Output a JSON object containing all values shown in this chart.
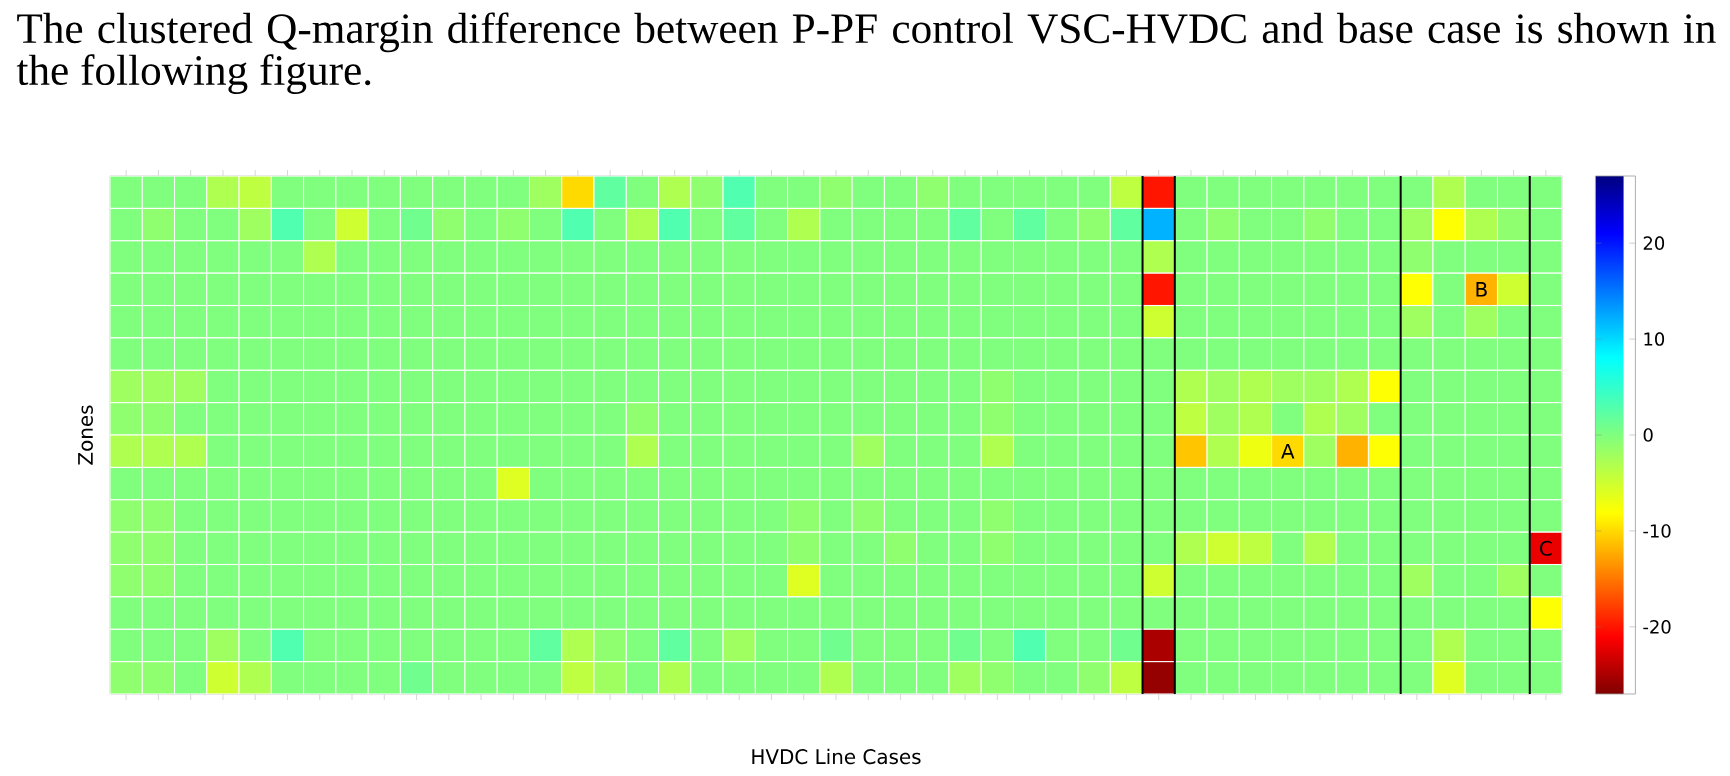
{
  "chart_data": {
    "type": "heatmap",
    "title": "The clustered Q-margin difference between P-PF control VSC-HVDC and base case is shown in the following figure.",
    "xlabel": "HVDC Line Cases",
    "ylabel": "Zones",
    "categories": [
      null,
      null,
      null,
      null,
      null,
      null,
      null,
      null,
      null,
      null,
      null,
      null,
      null,
      null,
      null,
      null,
      null,
      null,
      null,
      null,
      null,
      null,
      null,
      null,
      null,
      null,
      null,
      null,
      null,
      null,
      null,
      null,
      null,
      null,
      null,
      null,
      null,
      null,
      null,
      null,
      null,
      null,
      null,
      null,
      null
    ],
    "y_categories": [
      null,
      null,
      null,
      null,
      null,
      null,
      null,
      null,
      null,
      null,
      null,
      null,
      null,
      null,
      null,
      null
    ],
    "cells": [
      [
        0,
        0,
        0,
        -3,
        -4,
        0,
        0,
        0,
        0,
        0,
        0,
        0,
        0,
        -2,
        -10,
        2,
        0,
        -3,
        -1,
        3,
        0,
        0,
        -1,
        0,
        0,
        -1,
        0,
        0,
        0,
        0,
        0,
        -4,
        -20,
        0,
        0,
        0,
        0,
        0,
        0,
        0,
        0,
        -3,
        0,
        0,
        0
      ],
      [
        0,
        -1,
        0,
        0,
        -2,
        3,
        0,
        -5,
        0,
        1,
        -1,
        0,
        -1,
        0,
        3,
        0,
        -3,
        3,
        0,
        2,
        0,
        -3,
        0,
        0,
        0,
        0,
        2,
        0,
        2,
        0,
        -1,
        2,
        12,
        0,
        -1,
        0,
        0,
        -1,
        0,
        0,
        -2,
        -8,
        -3,
        -1,
        0
      ],
      [
        0,
        0,
        0,
        0,
        0,
        0,
        -3,
        0,
        0,
        0,
        0,
        0,
        0,
        0,
        0,
        0,
        0,
        0,
        0,
        0,
        0,
        0,
        0,
        0,
        0,
        0,
        0,
        0,
        0,
        0,
        0,
        0,
        -3,
        0,
        0,
        0,
        0,
        0,
        0,
        0,
        -1,
        0,
        0,
        0,
        0
      ],
      [
        0,
        0,
        0,
        0,
        0,
        0,
        0,
        0,
        0,
        0,
        0,
        0,
        0,
        0,
        0,
        0,
        0,
        0,
        0,
        0,
        0,
        0,
        0,
        0,
        0,
        0,
        0,
        0,
        0,
        0,
        0,
        0,
        -20,
        0,
        0,
        0,
        0,
        0,
        0,
        0,
        -8,
        0,
        -12,
        -5,
        0
      ],
      [
        0,
        0,
        0,
        0,
        0,
        0,
        0,
        0,
        0,
        0,
        0,
        0,
        0,
        0,
        0,
        0,
        0,
        0,
        0,
        0,
        0,
        0,
        0,
        0,
        0,
        0,
        0,
        0,
        0,
        0,
        0,
        0,
        -5,
        0,
        0,
        0,
        0,
        0,
        0,
        0,
        -2,
        0,
        -2,
        0,
        0
      ],
      [
        0,
        0,
        0,
        0,
        0,
        0,
        0,
        0,
        0,
        0,
        0,
        0,
        0,
        0,
        0,
        0,
        0,
        0,
        0,
        0,
        0,
        0,
        0,
        0,
        0,
        0,
        0,
        0,
        0,
        0,
        0,
        0,
        0,
        0,
        0,
        0,
        0,
        0,
        0,
        0,
        0,
        0,
        0,
        0,
        0
      ],
      [
        -2,
        -2,
        -2,
        0,
        0,
        0,
        0,
        0,
        0,
        0,
        0,
        0,
        0,
        0,
        0,
        0,
        0,
        0,
        0,
        0,
        0,
        0,
        0,
        0,
        0,
        0,
        0,
        -1,
        0,
        0,
        0,
        0,
        0,
        -3,
        -2,
        -3,
        -2,
        -2,
        -3,
        -8,
        0,
        0,
        0,
        0,
        0
      ],
      [
        -1,
        -1,
        0,
        0,
        0,
        0,
        0,
        0,
        0,
        0,
        0,
        0,
        0,
        0,
        0,
        0,
        -1,
        0,
        0,
        0,
        0,
        0,
        0,
        0,
        0,
        0,
        0,
        -1,
        0,
        0,
        0,
        0,
        0,
        -4,
        -2,
        -3,
        0,
        -3,
        -2,
        0,
        0,
        0,
        0,
        0,
        0
      ],
      [
        -3,
        -3,
        -3,
        0,
        0,
        0,
        0,
        0,
        0,
        0,
        0,
        0,
        0,
        0,
        0,
        0,
        -3,
        0,
        0,
        0,
        0,
        0,
        0,
        -2,
        0,
        0,
        0,
        -3,
        0,
        0,
        0,
        0,
        0,
        -11,
        -3,
        -7,
        -10,
        -2,
        -12,
        -8,
        0,
        0,
        0,
        0,
        0
      ],
      [
        0,
        0,
        0,
        0,
        0,
        0,
        0,
        0,
        0,
        0,
        0,
        0,
        -6,
        0,
        0,
        0,
        0,
        0,
        0,
        0,
        0,
        0,
        0,
        0,
        0,
        0,
        0,
        0,
        0,
        0,
        0,
        0,
        0,
        0,
        0,
        0,
        0,
        0,
        0,
        0,
        0,
        0,
        0,
        0,
        0
      ],
      [
        -1,
        -1,
        0,
        0,
        0,
        0,
        0,
        0,
        0,
        0,
        0,
        0,
        0,
        0,
        0,
        0,
        0,
        0,
        0,
        0,
        0,
        -1,
        0,
        -1,
        0,
        0,
        0,
        -1,
        0,
        0,
        0,
        0,
        0,
        0,
        0,
        0,
        0,
        0,
        0,
        0,
        0,
        0,
        0,
        0,
        0
      ],
      [
        -1,
        -1,
        0,
        0,
        0,
        0,
        0,
        0,
        0,
        0,
        0,
        0,
        0,
        0,
        0,
        0,
        0,
        0,
        0,
        0,
        0,
        -1,
        0,
        0,
        -1,
        0,
        0,
        -1,
        0,
        0,
        0,
        0,
        0,
        -3,
        -5,
        -4,
        0,
        -3,
        0,
        0,
        0,
        0,
        0,
        0,
        -22
      ],
      [
        -1,
        -1,
        0,
        0,
        0,
        0,
        0,
        0,
        0,
        0,
        0,
        0,
        0,
        0,
        0,
        0,
        0,
        0,
        0,
        0,
        0,
        -6,
        0,
        0,
        0,
        0,
        0,
        0,
        0,
        0,
        0,
        0,
        -5,
        0,
        0,
        0,
        0,
        0,
        0,
        0,
        -2,
        0,
        0,
        -2,
        0
      ],
      [
        0,
        0,
        0,
        0,
        0,
        0,
        0,
        0,
        0,
        0,
        0,
        0,
        0,
        0,
        0,
        0,
        0,
        0,
        0,
        0,
        0,
        0,
        0,
        0,
        0,
        0,
        0,
        0,
        0,
        0,
        0,
        0,
        0,
        0,
        0,
        0,
        0,
        0,
        0,
        0,
        0,
        0,
        0,
        0,
        -8
      ],
      [
        0,
        0,
        0,
        -2,
        0,
        3,
        0,
        0,
        0,
        0,
        0,
        0,
        0,
        2,
        -3,
        -1,
        0,
        2,
        0,
        -2,
        0,
        0,
        1,
        0,
        0,
        0,
        1,
        0,
        3,
        0,
        0,
        1,
        -25,
        0,
        0,
        0,
        0,
        0,
        0,
        0,
        0,
        -3,
        0,
        0,
        0
      ],
      [
        -1,
        -1,
        0,
        -5,
        -3,
        0,
        0,
        0,
        0,
        1,
        0,
        0,
        0,
        0,
        -4,
        -2,
        0,
        -3,
        0,
        0,
        0,
        0,
        -3,
        0,
        0,
        0,
        -2,
        -1,
        0,
        0,
        -1,
        -4,
        -26,
        0,
        0,
        0,
        0,
        0,
        0,
        0,
        0,
        -6,
        0,
        0,
        0
      ]
    ],
    "cell_labels": [
      [
        null,
        null,
        null,
        null,
        null,
        null,
        null,
        null,
        null,
        null,
        null,
        null,
        null,
        null,
        null,
        null,
        null,
        null,
        null,
        null,
        null,
        null,
        null,
        null,
        null,
        null,
        null,
        null,
        null,
        null,
        null,
        null,
        null,
        null,
        null,
        null,
        null,
        null,
        null,
        null,
        null,
        null,
        null,
        null,
        null
      ],
      [
        null,
        null,
        null,
        null,
        null,
        null,
        null,
        null,
        null,
        null,
        null,
        null,
        null,
        null,
        null,
        null,
        null,
        null,
        null,
        null,
        null,
        null,
        null,
        null,
        null,
        null,
        null,
        null,
        null,
        null,
        null,
        null,
        null,
        null,
        null,
        null,
        null,
        null,
        null,
        null,
        null,
        null,
        null,
        null,
        null
      ],
      [
        null,
        null,
        null,
        null,
        null,
        null,
        null,
        null,
        null,
        null,
        null,
        null,
        null,
        null,
        null,
        null,
        null,
        null,
        null,
        null,
        null,
        null,
        null,
        null,
        null,
        null,
        null,
        null,
        null,
        null,
        null,
        null,
        null,
        null,
        null,
        null,
        null,
        null,
        null,
        null,
        null,
        null,
        null,
        null,
        null
      ],
      [
        null,
        null,
        null,
        null,
        null,
        null,
        null,
        null,
        null,
        null,
        null,
        null,
        null,
        null,
        null,
        null,
        null,
        null,
        null,
        null,
        null,
        null,
        null,
        null,
        null,
        null,
        null,
        null,
        null,
        null,
        null,
        null,
        null,
        null,
        null,
        null,
        null,
        null,
        null,
        null,
        null,
        null,
        "B",
        null,
        null
      ],
      [
        null,
        null,
        null,
        null,
        null,
        null,
        null,
        null,
        null,
        null,
        null,
        null,
        null,
        null,
        null,
        null,
        null,
        null,
        null,
        null,
        null,
        null,
        null,
        null,
        null,
        null,
        null,
        null,
        null,
        null,
        null,
        null,
        null,
        null,
        null,
        null,
        null,
        null,
        null,
        null,
        null,
        null,
        null,
        null,
        null
      ],
      [
        null,
        null,
        null,
        null,
        null,
        null,
        null,
        null,
        null,
        null,
        null,
        null,
        null,
        null,
        null,
        null,
        null,
        null,
        null,
        null,
        null,
        null,
        null,
        null,
        null,
        null,
        null,
        null,
        null,
        null,
        null,
        null,
        null,
        null,
        null,
        null,
        null,
        null,
        null,
        null,
        null,
        null,
        null,
        null,
        null
      ],
      [
        null,
        null,
        null,
        null,
        null,
        null,
        null,
        null,
        null,
        null,
        null,
        null,
        null,
        null,
        null,
        null,
        null,
        null,
        null,
        null,
        null,
        null,
        null,
        null,
        null,
        null,
        null,
        null,
        null,
        null,
        null,
        null,
        null,
        null,
        null,
        null,
        null,
        null,
        null,
        null,
        null,
        null,
        null,
        null,
        null
      ],
      [
        null,
        null,
        null,
        null,
        null,
        null,
        null,
        null,
        null,
        null,
        null,
        null,
        null,
        null,
        null,
        null,
        null,
        null,
        null,
        null,
        null,
        null,
        null,
        null,
        null,
        null,
        null,
        null,
        null,
        null,
        null,
        null,
        null,
        null,
        null,
        null,
        null,
        null,
        null,
        null,
        null,
        null,
        null,
        null,
        null
      ],
      [
        null,
        null,
        null,
        null,
        null,
        null,
        null,
        null,
        null,
        null,
        null,
        null,
        null,
        null,
        null,
        null,
        null,
        null,
        null,
        null,
        null,
        null,
        null,
        null,
        null,
        null,
        null,
        null,
        null,
        null,
        null,
        null,
        null,
        null,
        null,
        null,
        "A",
        null,
        null,
        null,
        null,
        null,
        null,
        null,
        null
      ],
      [
        null,
        null,
        null,
        null,
        null,
        null,
        null,
        null,
        null,
        null,
        null,
        null,
        null,
        null,
        null,
        null,
        null,
        null,
        null,
        null,
        null,
        null,
        null,
        null,
        null,
        null,
        null,
        null,
        null,
        null,
        null,
        null,
        null,
        null,
        null,
        null,
        null,
        null,
        null,
        null,
        null,
        null,
        null,
        null,
        null
      ],
      [
        null,
        null,
        null,
        null,
        null,
        null,
        null,
        null,
        null,
        null,
        null,
        null,
        null,
        null,
        null,
        null,
        null,
        null,
        null,
        null,
        null,
        null,
        null,
        null,
        null,
        null,
        null,
        null,
        null,
        null,
        null,
        null,
        null,
        null,
        null,
        null,
        null,
        null,
        null,
        null,
        null,
        null,
        null,
        null,
        null
      ],
      [
        null,
        null,
        null,
        null,
        null,
        null,
        null,
        null,
        null,
        null,
        null,
        null,
        null,
        null,
        null,
        null,
        null,
        null,
        null,
        null,
        null,
        null,
        null,
        null,
        null,
        null,
        null,
        null,
        null,
        null,
        null,
        null,
        null,
        null,
        null,
        null,
        null,
        null,
        null,
        null,
        null,
        null,
        null,
        null,
        "C"
      ],
      [
        null,
        null,
        null,
        null,
        null,
        null,
        null,
        null,
        null,
        null,
        null,
        null,
        null,
        null,
        null,
        null,
        null,
        null,
        null,
        null,
        null,
        null,
        null,
        null,
        null,
        null,
        null,
        null,
        null,
        null,
        null,
        null,
        null,
        null,
        null,
        null,
        null,
        null,
        null,
        null,
        null,
        null,
        null,
        null,
        null
      ],
      [
        null,
        null,
        null,
        null,
        null,
        null,
        null,
        null,
        null,
        null,
        null,
        null,
        null,
        null,
        null,
        null,
        null,
        null,
        null,
        null,
        null,
        null,
        null,
        null,
        null,
        null,
        null,
        null,
        null,
        null,
        null,
        null,
        null,
        null,
        null,
        null,
        null,
        null,
        null,
        null,
        null,
        null,
        null,
        null,
        null
      ],
      [
        null,
        null,
        null,
        null,
        null,
        null,
        null,
        null,
        null,
        null,
        null,
        null,
        null,
        null,
        null,
        null,
        null,
        null,
        null,
        null,
        null,
        null,
        null,
        null,
        null,
        null,
        null,
        null,
        null,
        null,
        null,
        null,
        null,
        null,
        null,
        null,
        null,
        null,
        null,
        null,
        null,
        null,
        null,
        null,
        null
      ],
      [
        null,
        null,
        null,
        null,
        null,
        null,
        null,
        null,
        null,
        null,
        null,
        null,
        null,
        null,
        null,
        null,
        null,
        null,
        null,
        null,
        null,
        null,
        null,
        null,
        null,
        null,
        null,
        null,
        null,
        null,
        null,
        null,
        null,
        null,
        null,
        null,
        null,
        null,
        null,
        null,
        null,
        null,
        null,
        null,
        null
      ]
    ],
    "clim": [
      -27,
      27
    ],
    "cticks": [
      -20,
      -10,
      0,
      10,
      20
    ],
    "tick_labels": false
  }
}
